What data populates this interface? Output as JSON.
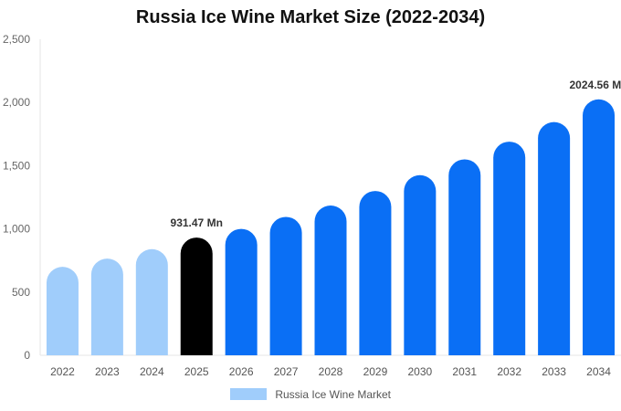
{
  "chart_data": {
    "type": "bar",
    "title": "Russia Ice Wine Market Size (2022-2034)",
    "xlabel": "",
    "ylabel": "",
    "categories": [
      "2022",
      "2023",
      "2024",
      "2025",
      "2026",
      "2027",
      "2028",
      "2029",
      "2030",
      "2031",
      "2032",
      "2033",
      "2034"
    ],
    "series": [
      {
        "name": "Russia Ice Wine Market",
        "values": [
          700,
          765,
          840,
          931.47,
          1000,
          1095,
          1185,
          1300,
          1425,
          1550,
          1690,
          1845,
          2024.56
        ]
      }
    ],
    "bar_colors": [
      "#a0cdfb",
      "#a0cdfb",
      "#a0cdfb",
      "#000000",
      "#0a6ff5",
      "#0a6ff5",
      "#0a6ff5",
      "#0a6ff5",
      "#0a6ff5",
      "#0a6ff5",
      "#0a6ff5",
      "#0a6ff5",
      "#0a6ff5"
    ],
    "ylim": [
      0,
      2500
    ],
    "yticks": [
      "0",
      "500",
      "1,000",
      "1,500",
      "2,000",
      "2,500"
    ],
    "grid": false,
    "legend_position": "bottom",
    "annotations": [
      {
        "index": 3,
        "text": "931.47 Mn"
      },
      {
        "index": 12,
        "text": "2024.56 Mn"
      }
    ]
  }
}
